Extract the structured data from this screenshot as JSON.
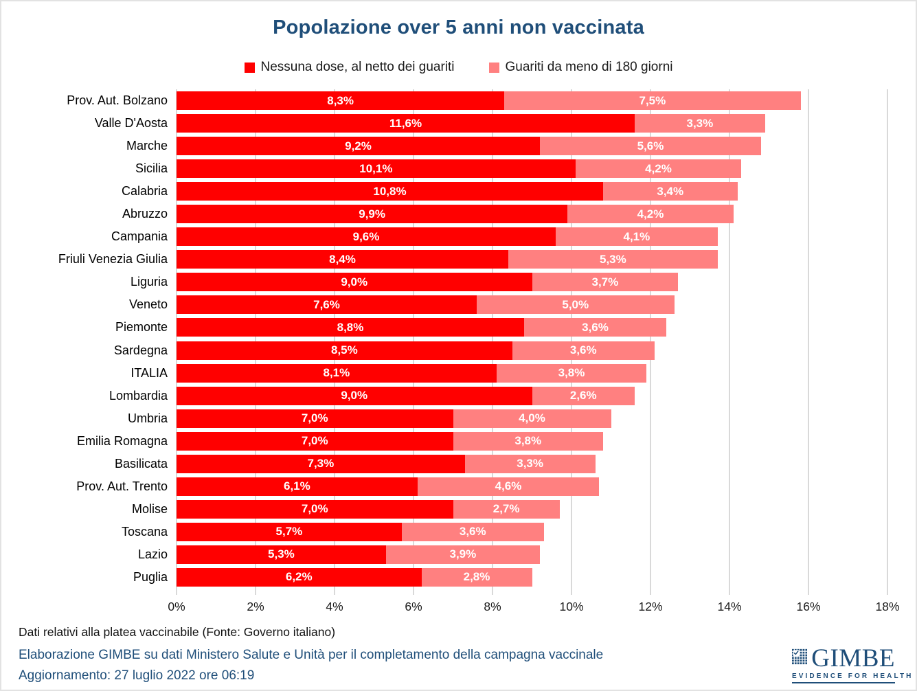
{
  "title": "Popolazione over 5 anni non vaccinata",
  "legend": [
    {
      "label": "Nessuna dose, al netto dei guariti",
      "color": "#FF0000"
    },
    {
      "label": "Guariti da meno di 180 giorni",
      "color": "#FF8080"
    }
  ],
  "chart_data": {
    "type": "bar",
    "orientation": "horizontal-stacked",
    "title": "Popolazione over 5 anni non vaccinata",
    "categories": [
      "Prov. Aut. Bolzano",
      "Valle D'Aosta",
      "Marche",
      "Sicilia",
      "Calabria",
      "Abruzzo",
      "Campania",
      "Friuli Venezia Giulia",
      "Liguria",
      "Veneto",
      "Piemonte",
      "Sardegna",
      "ITALIA",
      "Lombardia",
      "Umbria",
      "Emilia Romagna",
      "Basilicata",
      "Prov. Aut. Trento",
      "Molise",
      "Toscana",
      "Lazio",
      "Puglia"
    ],
    "series": [
      {
        "name": "Nessuna dose, al netto dei guariti",
        "color": "#FF0000",
        "values": [
          8.3,
          11.6,
          9.2,
          10.1,
          10.8,
          9.9,
          9.6,
          8.4,
          9.0,
          7.6,
          8.8,
          8.5,
          8.1,
          9.0,
          7.0,
          7.0,
          7.3,
          6.1,
          7.0,
          5.7,
          5.3,
          6.2
        ],
        "labels": [
          "8,3%",
          "11,6%",
          "9,2%",
          "10,1%",
          "10,8%",
          "9,9%",
          "9,6%",
          "8,4%",
          "9,0%",
          "7,6%",
          "8,8%",
          "8,5%",
          "8,1%",
          "9,0%",
          "7,0%",
          "7,0%",
          "7,3%",
          "6,1%",
          "7,0%",
          "5,7%",
          "5,3%",
          "6,2%"
        ]
      },
      {
        "name": "Guariti da meno di 180 giorni",
        "color": "#FF8080",
        "values": [
          7.5,
          3.3,
          5.6,
          4.2,
          3.4,
          4.2,
          4.1,
          5.3,
          3.7,
          5.0,
          3.6,
          3.6,
          3.8,
          2.6,
          4.0,
          3.8,
          3.3,
          4.6,
          2.7,
          3.6,
          3.9,
          2.8
        ],
        "labels": [
          "7,5%",
          "3,3%",
          "5,6%",
          "4,2%",
          "3,4%",
          "4,2%",
          "4,1%",
          "5,3%",
          "3,7%",
          "5,0%",
          "3,6%",
          "3,6%",
          "3,8%",
          "2,6%",
          "4,0%",
          "3,8%",
          "3,3%",
          "4,6%",
          "2,7%",
          "3,6%",
          "3,9%",
          "2,8%"
        ]
      }
    ],
    "xlim": [
      0,
      18
    ],
    "x_ticks": [
      "0%",
      "2%",
      "4%",
      "6%",
      "8%",
      "10%",
      "12%",
      "14%",
      "16%",
      "18%"
    ],
    "grid": "vertical",
    "legend_position": "top",
    "grid_color": "#D9D9D9",
    "value_label_color": "#FFFFFF"
  },
  "footer": {
    "note": "Dati relativi alla platea vaccinabile (Fonte: Governo italiano)",
    "elaboration": "Elaborazione GIMBE su dati Ministero Salute e Unità per il completamento della campagna vaccinale",
    "update": "Aggiornamento: 27 luglio 2022 ore 06:19"
  },
  "logo": {
    "name": "GIMBE",
    "tagline": "EVIDENCE FOR HEALTH",
    "color": "#1F4E79"
  }
}
